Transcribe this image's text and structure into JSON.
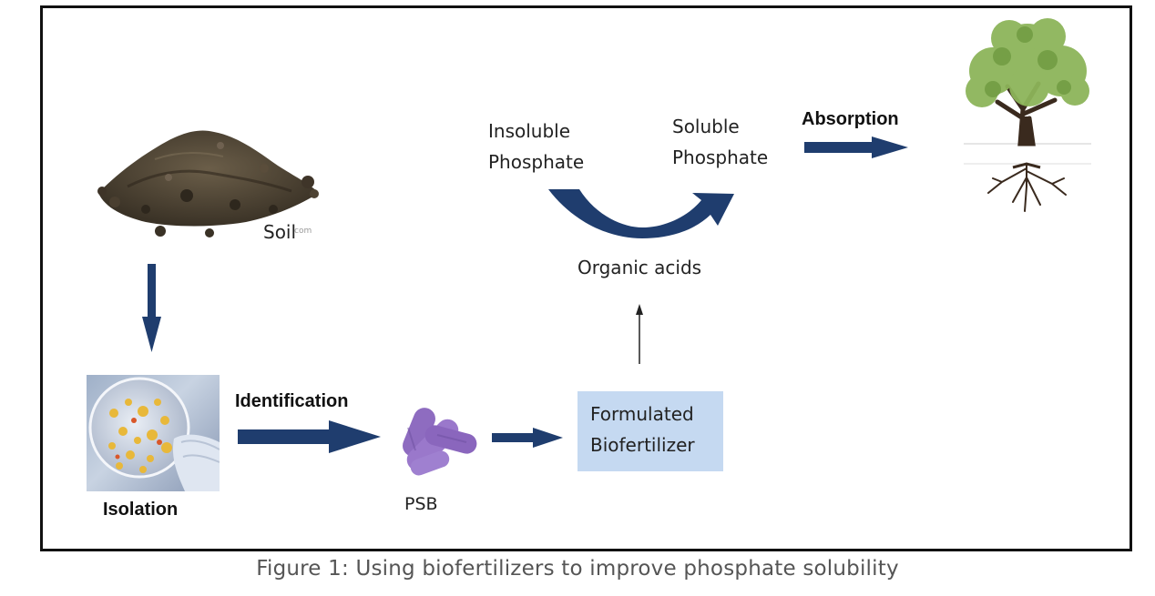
{
  "diagram": {
    "soil_label": "Soil",
    "soil_watermark": "com",
    "isolation_label": "Isolation",
    "identification_label": "Identification",
    "psb_label": "PSB",
    "formulated_box": [
      "Formulated",
      "Biofertilizer"
    ],
    "insoluble_label": [
      "Insoluble",
      "Phosphate"
    ],
    "soluble_label": [
      "Soluble",
      "Phosphate"
    ],
    "organic_acids_label": "Organic acids",
    "absorption_label": "Absorption"
  },
  "caption": "Figure 1: Using biofertilizers to improve phosphate solubility",
  "colors": {
    "arrow_blue": "#1f3d6e",
    "box_fill": "#c5d9f1",
    "bacteria_purple": "#8e6cc0",
    "soil_brown": "#4a3f30",
    "leaf_green": "#8db55a",
    "trunk_brown": "#3a2a1e"
  }
}
